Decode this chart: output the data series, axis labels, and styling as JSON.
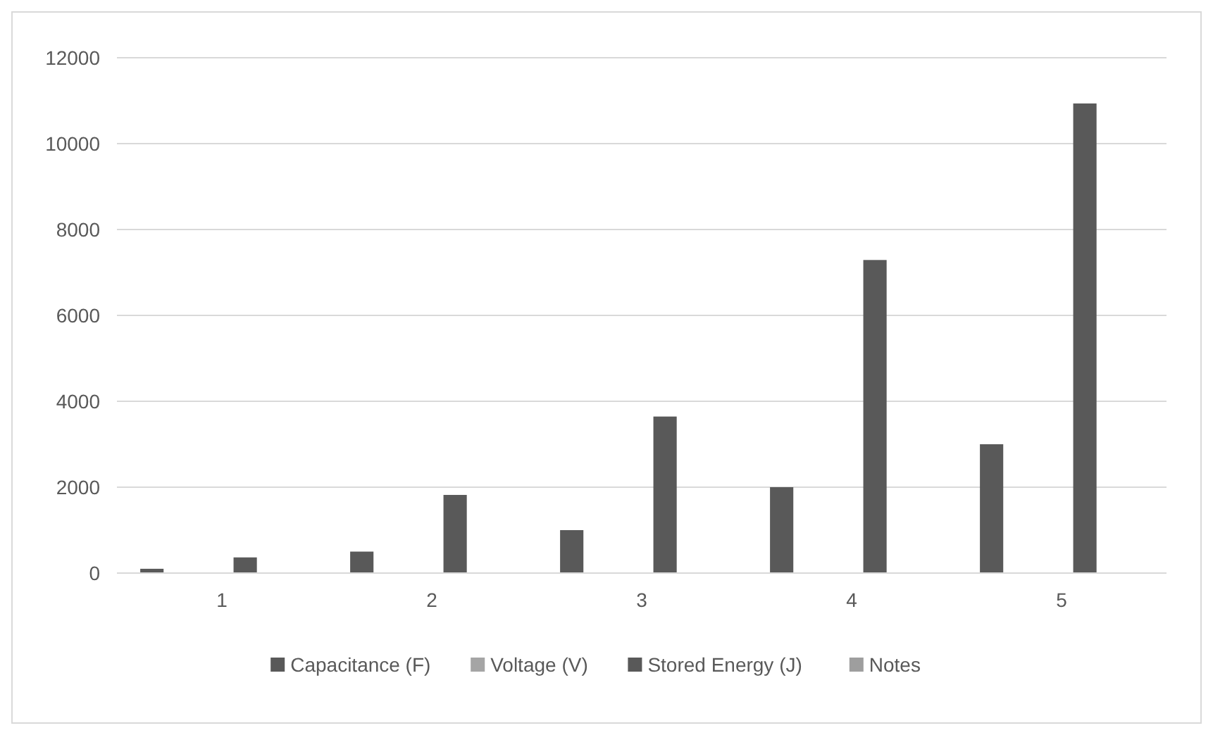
{
  "chart_data": {
    "type": "bar",
    "categories": [
      "1",
      "2",
      "3",
      "4",
      "5"
    ],
    "series": [
      {
        "name": "Capacitance (F)",
        "color": "#595959",
        "values": [
          100,
          500,
          1000,
          2000,
          3000
        ]
      },
      {
        "name": "Voltage (V)",
        "color": "#a5a5a5",
        "values": [
          0,
          0,
          0,
          0,
          0
        ]
      },
      {
        "name": "Stored Energy (J)",
        "color": "#595959",
        "values": [
          365,
          1820,
          3645,
          7290,
          10935
        ]
      },
      {
        "name": "Notes",
        "color": "#9e9e9e",
        "values": [
          null,
          null,
          null,
          null,
          null
        ]
      }
    ],
    "ylim": [
      0,
      12000
    ],
    "yticks": [
      0,
      2000,
      4000,
      6000,
      8000,
      10000,
      12000
    ],
    "grid": "y",
    "legend": "bottom"
  }
}
